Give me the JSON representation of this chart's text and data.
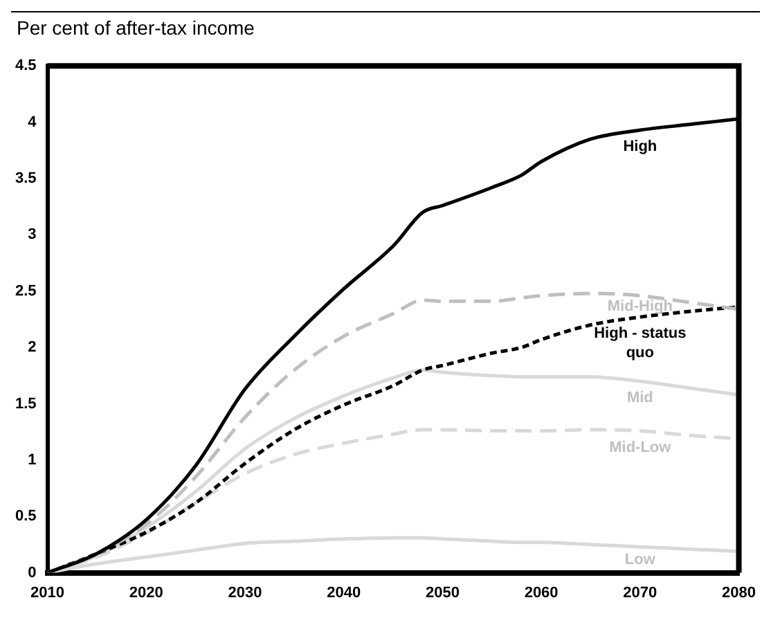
{
  "chart_data": {
    "type": "line",
    "title": "Per cent of after-tax income",
    "x": [
      2010,
      2015,
      2020,
      2025,
      2030,
      2035,
      2040,
      2045,
      2048,
      2050,
      2055,
      2058,
      2060,
      2065,
      2070,
      2075,
      2080
    ],
    "xlim": [
      2010,
      2080
    ],
    "xticks": [
      2010,
      2020,
      2030,
      2040,
      2050,
      2060,
      2070,
      2080
    ],
    "ylim": [
      0,
      4.5
    ],
    "yticks": [
      0,
      0.5,
      1,
      1.5,
      2,
      2.5,
      3,
      3.5,
      4,
      4.5
    ],
    "grid": false,
    "legend": false,
    "marker": "none",
    "series": [
      {
        "name": "High",
        "color": "#000000",
        "line_style": "solid",
        "values": [
          0,
          0.17,
          0.47,
          0.95,
          1.63,
          2.1,
          2.52,
          2.9,
          3.2,
          3.26,
          3.42,
          3.53,
          3.65,
          3.85,
          3.93,
          3.98,
          4.03
        ]
      },
      {
        "name": "Mid-High",
        "color": "#bfbfbf",
        "line_style": "dashed",
        "values": [
          0,
          0.17,
          0.43,
          0.85,
          1.38,
          1.8,
          2.1,
          2.3,
          2.42,
          2.41,
          2.41,
          2.44,
          2.46,
          2.48,
          2.46,
          2.4,
          2.34
        ]
      },
      {
        "name": "High - status quo",
        "color": "#000000",
        "line_style": "dotted",
        "values": [
          0,
          0.17,
          0.36,
          0.62,
          0.97,
          1.27,
          1.49,
          1.66,
          1.8,
          1.84,
          1.95,
          2.0,
          2.07,
          2.2,
          2.27,
          2.32,
          2.36
        ]
      },
      {
        "name": "Mid",
        "color": "#d9d9d9",
        "line_style": "solid",
        "values": [
          0,
          0.15,
          0.4,
          0.72,
          1.1,
          1.37,
          1.57,
          1.73,
          1.8,
          1.78,
          1.75,
          1.74,
          1.74,
          1.74,
          1.7,
          1.64,
          1.58
        ]
      },
      {
        "name": "Mid-Low",
        "color": "#d9d9d9",
        "line_style": "dashed",
        "values": [
          0,
          0.14,
          0.35,
          0.62,
          0.88,
          1.05,
          1.15,
          1.23,
          1.27,
          1.27,
          1.26,
          1.26,
          1.26,
          1.27,
          1.26,
          1.22,
          1.19
        ]
      },
      {
        "name": "Low",
        "color": "#d9d9d9",
        "line_style": "solid",
        "values": [
          0,
          0.08,
          0.14,
          0.2,
          0.26,
          0.28,
          0.3,
          0.31,
          0.31,
          0.3,
          0.28,
          0.27,
          0.27,
          0.25,
          0.23,
          0.21,
          0.19
        ]
      }
    ]
  }
}
